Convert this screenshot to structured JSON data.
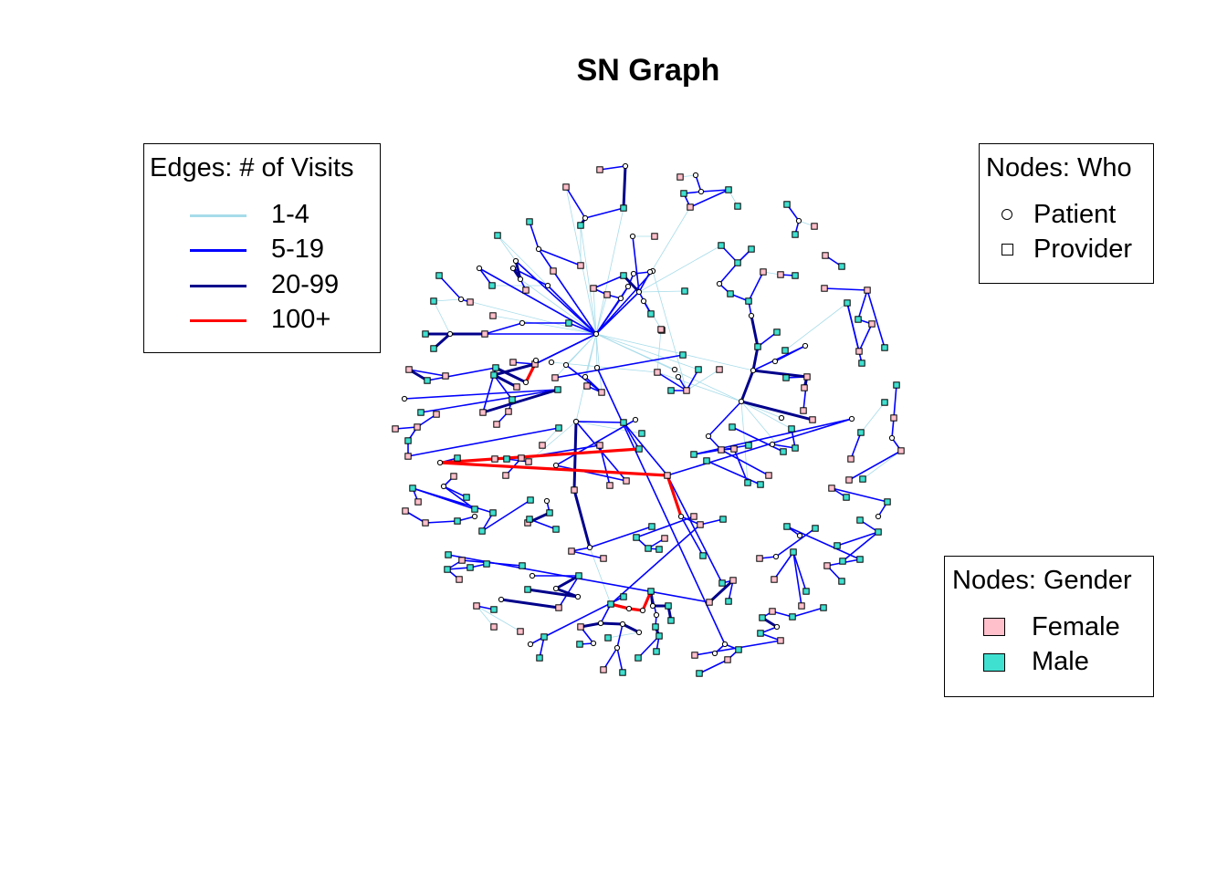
{
  "title": "SN Graph",
  "legend_edges": {
    "title": "Edges: # of Visits",
    "items": [
      {
        "label": "1-4",
        "color": "#a7dcea"
      },
      {
        "label": "5-19",
        "color": "#0000ff"
      },
      {
        "label": "20-99",
        "color": "#00008b"
      },
      {
        "label": "100+",
        "color": "#ff0000"
      }
    ]
  },
  "legend_who": {
    "title": "Nodes: Who",
    "items": [
      {
        "label": "Patient",
        "shape": "circle"
      },
      {
        "label": "Provider",
        "shape": "square"
      }
    ]
  },
  "legend_gender": {
    "title": "Nodes: Gender",
    "items": [
      {
        "label": "Female",
        "color": "#ffc0cb"
      },
      {
        "label": "Male",
        "color": "#40e0d0"
      }
    ]
  }
}
